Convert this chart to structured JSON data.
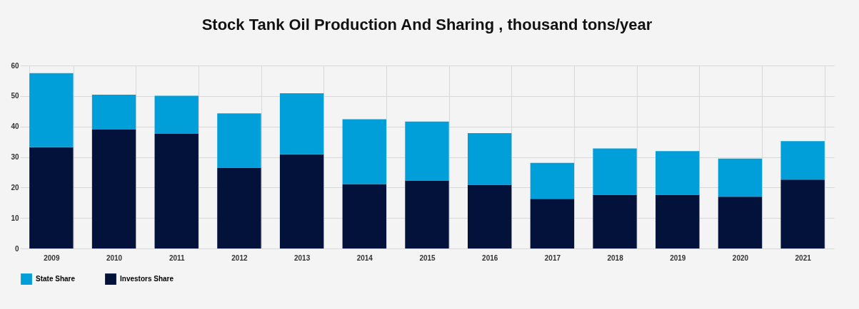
{
  "chart_data": {
    "type": "bar",
    "title": "Stock Tank Oil Production And Sharing , thousand tons/year",
    "stacked": true,
    "categories": [
      "2009",
      "2010",
      "2011",
      "2012",
      "2013",
      "2014",
      "2015",
      "2016",
      "2017",
      "2018",
      "2019",
      "2020",
      "2021"
    ],
    "series": [
      {
        "name": "Investors Share",
        "color": "#03123b",
        "values": [
          33.2,
          39,
          37.6,
          26.5,
          30.9,
          21.1,
          22.3,
          20.9,
          16.3,
          17.6,
          17.6,
          17.0,
          22.6
        ]
      },
      {
        "name": "State Share",
        "color": "#009fd9",
        "values": [
          24.3,
          11.4,
          12.5,
          17.8,
          20.0,
          21.3,
          19.3,
          16.9,
          11.8,
          15.2,
          14.3,
          12.5,
          12.6
        ]
      }
    ],
    "ylim": [
      0,
      60
    ],
    "yticks": [
      0,
      10,
      20,
      30,
      40,
      50,
      60
    ],
    "grid": true,
    "legend": "bottom"
  }
}
